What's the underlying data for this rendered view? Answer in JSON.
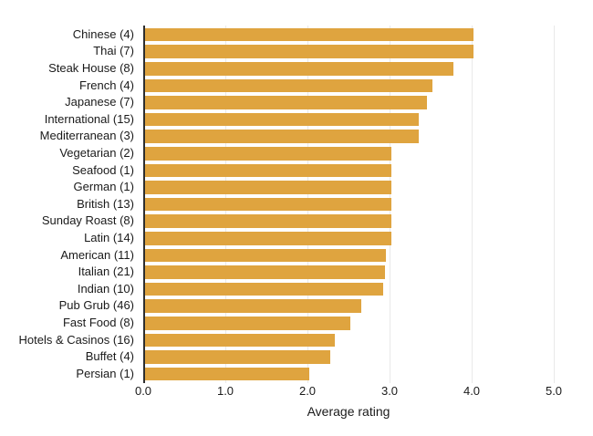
{
  "chart_data": {
    "type": "bar",
    "orientation": "horizontal",
    "title": "",
    "xlabel": "Average rating",
    "ylabel": "",
    "categories": [
      "Chinese (4)",
      "Thai (7)",
      "Steak House (8)",
      "French (4)",
      "Japanese (7)",
      "International (15)",
      "Mediterranean (3)",
      "Vegetarian (2)",
      "Seafood (1)",
      "German (1)",
      "British (13)",
      "Sunday Roast (8)",
      "Latin (14)",
      "American (11)",
      "Italian (21)",
      "Indian (10)",
      "Pub Grub (46)",
      "Fast Food (8)",
      "Hotels & Casinos (16)",
      "Buffet (4)",
      "Persian (1)"
    ],
    "values": [
      4.0,
      4.0,
      3.75,
      3.5,
      3.43,
      3.33,
      3.33,
      3.0,
      3.0,
      3.0,
      3.0,
      3.0,
      3.0,
      2.93,
      2.92,
      2.9,
      2.63,
      2.5,
      2.31,
      2.25,
      2.0
    ],
    "xlim": [
      0,
      5.25
    ],
    "xticks": [
      0,
      1,
      2,
      3,
      4,
      5
    ],
    "xtick_labels": [
      "0.0",
      "1.0",
      "2.0",
      "3.0",
      "4.0",
      "5.0"
    ],
    "grid": "vertical-only",
    "legend": "none",
    "colors": {
      "bar_fill": "#DFA43F",
      "gridline": "#e9e9e9",
      "axis_line": "#2e2e2e",
      "text": "#1a1a1a"
    }
  }
}
